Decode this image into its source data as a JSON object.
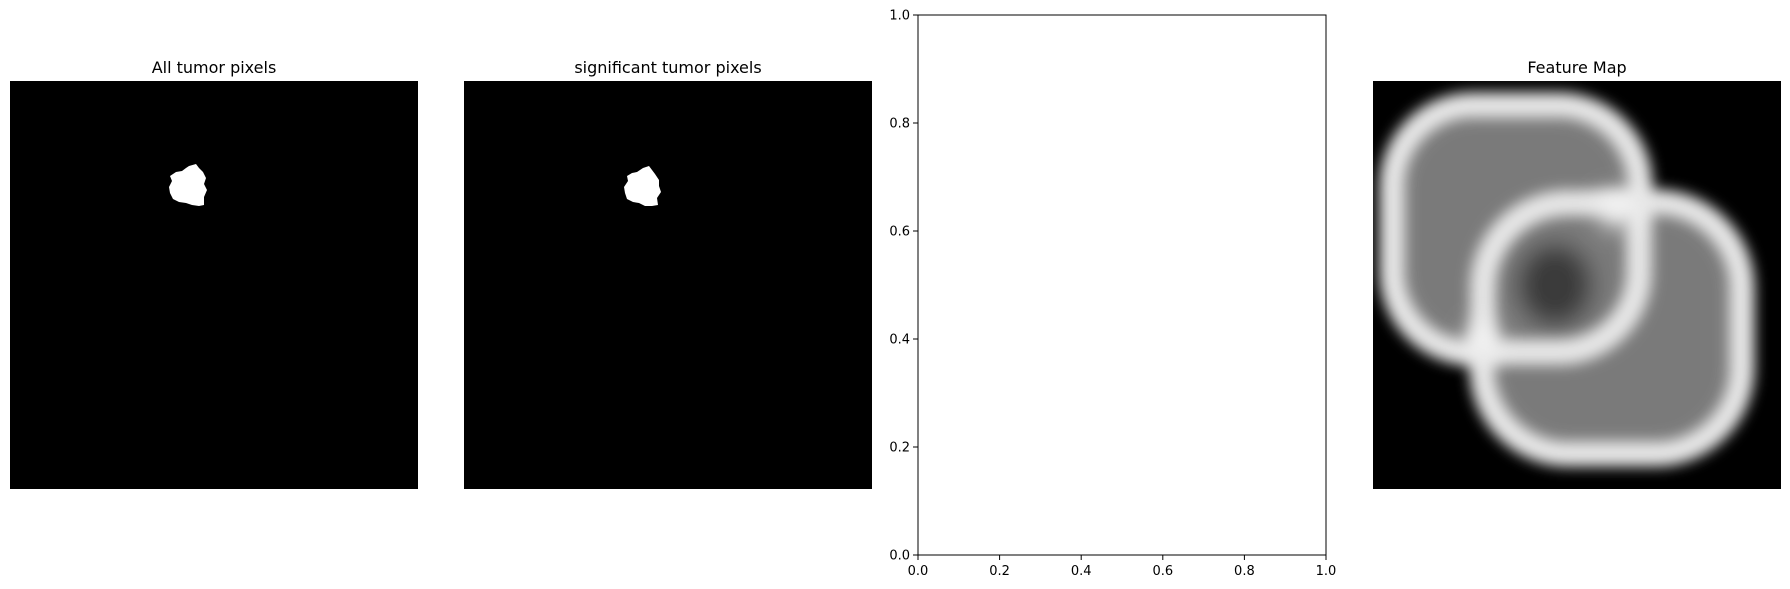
{
  "colors": {
    "background": "#000000",
    "foreground": "#ffffff",
    "axis": "#000000"
  },
  "chart_data": [
    {
      "type": "heatmap",
      "title": "All tumor pixels",
      "axes_visible": false,
      "colormap": "gray",
      "content": "binary mask: a single small white blob on a black field, in the upper-left quadrant"
    },
    {
      "type": "heatmap",
      "title": "significant tumor pixels",
      "axes_visible": false,
      "colormap": "gray",
      "content": "binary mask: the same small white blob on a black field"
    },
    {
      "type": "scatter",
      "title": "",
      "xlabel": "",
      "ylabel": "",
      "xlim": [
        0,
        1
      ],
      "ylim": [
        0,
        1
      ],
      "xticks": [
        "0.0",
        "0.2",
        "0.4",
        "0.6",
        "0.8",
        "1.0"
      ],
      "yticks": [
        "0.0",
        "0.2",
        "0.4",
        "0.6",
        "0.8",
        "1.0"
      ],
      "grid": false,
      "series": []
    },
    {
      "type": "heatmap",
      "title": "Feature Map",
      "axes_visible": false,
      "colormap": "gray",
      "content": "blurred grayscale map of two overlapping bright rounded outlines on a black background"
    }
  ]
}
